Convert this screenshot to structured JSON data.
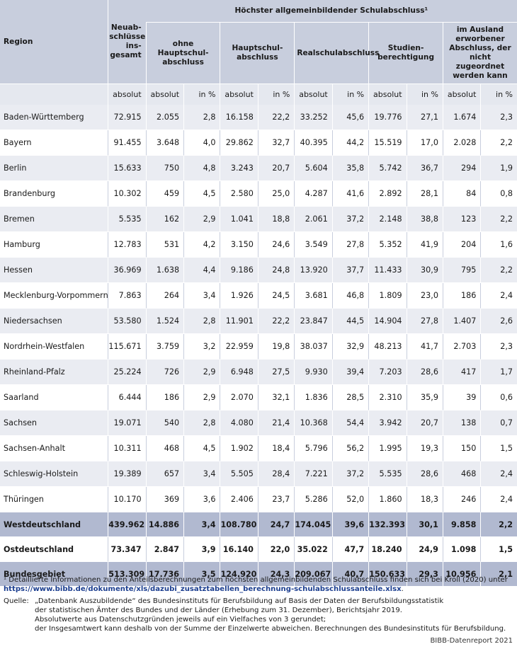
{
  "header": {
    "region": "Region",
    "total": "Neuab-schlüsse ins-gesamt",
    "group_title": "Höchster allgemeinbildender Schulabschluss¹",
    "groups": [
      "ohne Hauptschul-abschluss",
      "Hauptschul-abschluss",
      "Realschulabschluss",
      "Studien-berechtigung",
      "im Ausland erworbener Abschluss, der nicht zugeordnet werden kann"
    ],
    "sub_absolut": "absolut",
    "sub_percent": "in %"
  },
  "rows": [
    [
      "Baden-Württemberg",
      "72.915",
      "2.055",
      "2,8",
      "16.158",
      "22,2",
      "33.252",
      "45,6",
      "19.776",
      "27,1",
      "1.674",
      "2,3"
    ],
    [
      "Bayern",
      "91.455",
      "3.648",
      "4,0",
      "29.862",
      "32,7",
      "40.395",
      "44,2",
      "15.519",
      "17,0",
      "2.028",
      "2,2"
    ],
    [
      "Berlin",
      "15.633",
      "750",
      "4,8",
      "3.243",
      "20,7",
      "5.604",
      "35,8",
      "5.742",
      "36,7",
      "294",
      "1,9"
    ],
    [
      "Brandenburg",
      "10.302",
      "459",
      "4,5",
      "2.580",
      "25,0",
      "4.287",
      "41,6",
      "2.892",
      "28,1",
      "84",
      "0,8"
    ],
    [
      "Bremen",
      "5.535",
      "162",
      "2,9",
      "1.041",
      "18,8",
      "2.061",
      "37,2",
      "2.148",
      "38,8",
      "123",
      "2,2"
    ],
    [
      "Hamburg",
      "12.783",
      "531",
      "4,2",
      "3.150",
      "24,6",
      "3.549",
      "27,8",
      "5.352",
      "41,9",
      "204",
      "1,6"
    ],
    [
      "Hessen",
      "36.969",
      "1.638",
      "4,4",
      "9.186",
      "24,8",
      "13.920",
      "37,7",
      "11.433",
      "30,9",
      "795",
      "2,2"
    ],
    [
      "Mecklenburg-Vorpommern",
      "7.863",
      "264",
      "3,4",
      "1.926",
      "24,5",
      "3.681",
      "46,8",
      "1.809",
      "23,0",
      "186",
      "2,4"
    ],
    [
      "Niedersachsen",
      "53.580",
      "1.524",
      "2,8",
      "11.901",
      "22,2",
      "23.847",
      "44,5",
      "14.904",
      "27,8",
      "1.407",
      "2,6"
    ],
    [
      "Nordrhein-Westfalen",
      "115.671",
      "3.759",
      "3,2",
      "22.959",
      "19,8",
      "38.037",
      "32,9",
      "48.213",
      "41,7",
      "2.703",
      "2,3"
    ],
    [
      "Rheinland-Pfalz",
      "25.224",
      "726",
      "2,9",
      "6.948",
      "27,5",
      "9.930",
      "39,4",
      "7.203",
      "28,6",
      "417",
      "1,7"
    ],
    [
      "Saarland",
      "6.444",
      "186",
      "2,9",
      "2.070",
      "32,1",
      "1.836",
      "28,5",
      "2.310",
      "35,9",
      "39",
      "0,6"
    ],
    [
      "Sachsen",
      "19.071",
      "540",
      "2,8",
      "4.080",
      "21,4",
      "10.368",
      "54,4",
      "3.942",
      "20,7",
      "138",
      "0,7"
    ],
    [
      "Sachsen-Anhalt",
      "10.311",
      "468",
      "4,5",
      "1.902",
      "18,4",
      "5.796",
      "56,2",
      "1.995",
      "19,3",
      "150",
      "1,5"
    ],
    [
      "Schleswig-Holstein",
      "19.389",
      "657",
      "3,4",
      "5.505",
      "28,4",
      "7.221",
      "37,2",
      "5.535",
      "28,6",
      "468",
      "2,4"
    ],
    [
      "Thüringen",
      "10.170",
      "369",
      "3,6",
      "2.406",
      "23,7",
      "5.286",
      "52,0",
      "1.860",
      "18,3",
      "246",
      "2,4"
    ]
  ],
  "aggregates": [
    [
      "Westdeutschland",
      "439.962",
      "14.886",
      "3,4",
      "108.780",
      "24,7",
      "174.045",
      "39,6",
      "132.393",
      "30,1",
      "9.858",
      "2,2"
    ],
    [
      "Ostdeutschland",
      "73.347",
      "2.847",
      "3,9",
      "16.140",
      "22,0",
      "35.022",
      "47,7",
      "18.240",
      "24,9",
      "1.098",
      "1,5"
    ],
    [
      "Bundesgebiet",
      "513.309",
      "17.736",
      "3,5",
      "124.920",
      "24,3",
      "209.067",
      "40,7",
      "150.633",
      "29,3",
      "10.956",
      "2,1"
    ]
  ],
  "notes": {
    "footnote": "¹ Detaillierte Informationen zu den Anteilsberechnungen zum höchsten allgemeinbildenden Schulabschluss finden sich bei Kroll (2020) unter",
    "footnote_link": "https://www.bibb.de/dokumente/xls/dazubi_zusatztabellen_berechnung-schulabschlussanteile.xlsx",
    "footnote_end": ".",
    "source_label": "Quelle:",
    "source_lines": [
      "„Datenbank Auszubildende“ des Bundesinstituts für Berufsbildung auf Basis der Daten der Berufsbildungsstatistik",
      "der statistischen Ämter des Bundes und der Länder (Erhebung zum 31. Dezember), Berichtsjahr 2019.",
      "Absolutwerte aus Datenschutzgründen jeweils auf ein Vielfaches von 3 gerundet;",
      "der Insgesamtwert kann deshalb von der Summe der Einzelwerte abweichen. Berechnungen des Bundesinstituts für Berufsbildung."
    ],
    "credit": "BIBB-Datenreport 2021"
  }
}
